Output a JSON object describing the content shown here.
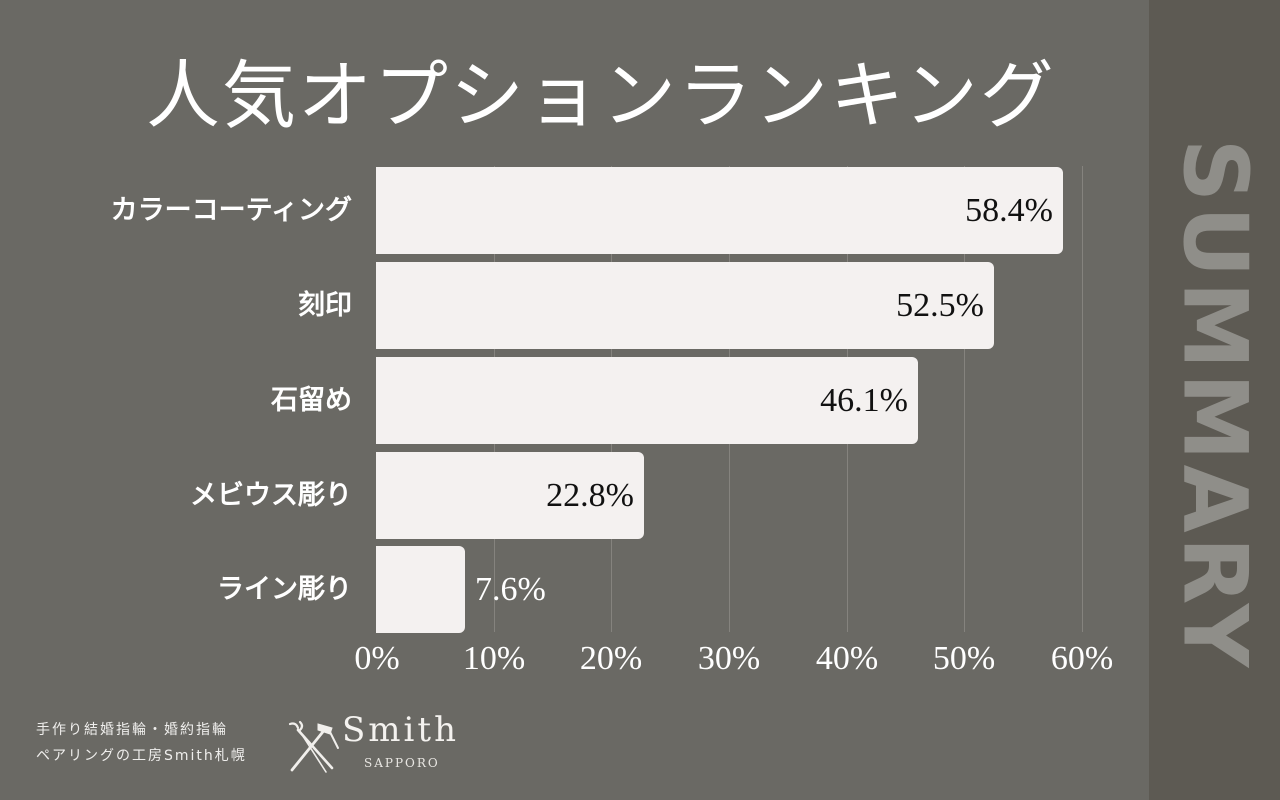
{
  "title": "人気オプションランキング",
  "side_label": "SUMMARY",
  "colors": {
    "background": "#6a6964",
    "sidebar": "#5d5a53",
    "sidebar_text": "#8f8e89",
    "bar": "#f4f1f0",
    "gridline": "#85837e",
    "text": "#ffffff"
  },
  "footer": {
    "line1": "手作り結婚指輪・婚約指輪",
    "line2": "ペアリングの工房Smith札幌",
    "logo_word": "Smith",
    "logo_sub": "SAPPORO",
    "logo_icon": "pliers-hammer-crossed-icon"
  },
  "chart_data": {
    "type": "bar",
    "orientation": "horizontal",
    "title": "人気オプションランキング",
    "categories": [
      "カラーコーティング",
      "刻印",
      "石留め",
      "メビウス彫り",
      "ライン彫り"
    ],
    "values": [
      58.4,
      52.5,
      46.1,
      22.8,
      7.6
    ],
    "value_labels": [
      "58.4%",
      "52.5%",
      "46.1%",
      "22.8%",
      "7.6%"
    ],
    "xlabel": "",
    "ylabel": "",
    "xlim": [
      0,
      60
    ],
    "x_ticks": [
      "0%",
      "10%",
      "20%",
      "30%",
      "40%",
      "50%",
      "60%"
    ],
    "grid": "vertical",
    "legend": "none"
  }
}
